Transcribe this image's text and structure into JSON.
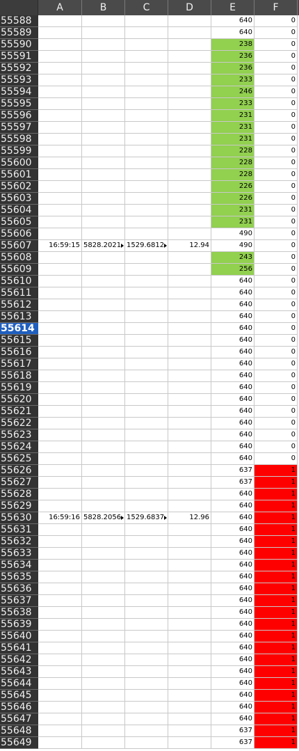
{
  "columns": [
    "A",
    "B",
    "C",
    "D",
    "E",
    "F"
  ],
  "selected_row": "55614",
  "colors": {
    "highlight_green": "#92d050",
    "highlight_red": "#ff0000",
    "selected_header": "#1f5fbf"
  },
  "rows": [
    {
      "n": "55588",
      "E": "640",
      "F": "0"
    },
    {
      "n": "55589",
      "E": "640",
      "F": "0"
    },
    {
      "n": "55590",
      "E": "238",
      "F": "0",
      "Ehl": "green"
    },
    {
      "n": "55591",
      "E": "236",
      "F": "0",
      "Ehl": "green"
    },
    {
      "n": "55592",
      "E": "236",
      "F": "0",
      "Ehl": "green"
    },
    {
      "n": "55593",
      "E": "233",
      "F": "0",
      "Ehl": "green"
    },
    {
      "n": "55594",
      "E": "246",
      "F": "0",
      "Ehl": "green"
    },
    {
      "n": "55595",
      "E": "233",
      "F": "0",
      "Ehl": "green"
    },
    {
      "n": "55596",
      "E": "231",
      "F": "0",
      "Ehl": "green"
    },
    {
      "n": "55597",
      "E": "231",
      "F": "0",
      "Ehl": "green"
    },
    {
      "n": "55598",
      "E": "231",
      "F": "0",
      "Ehl": "green"
    },
    {
      "n": "55599",
      "E": "228",
      "F": "0",
      "Ehl": "green"
    },
    {
      "n": "55600",
      "E": "228",
      "F": "0",
      "Ehl": "green"
    },
    {
      "n": "55601",
      "E": "228",
      "F": "0",
      "Ehl": "green"
    },
    {
      "n": "55602",
      "E": "226",
      "F": "0",
      "Ehl": "green"
    },
    {
      "n": "55603",
      "E": "226",
      "F": "0",
      "Ehl": "green"
    },
    {
      "n": "55604",
      "E": "231",
      "F": "0",
      "Ehl": "green"
    },
    {
      "n": "55605",
      "E": "231",
      "F": "0",
      "Ehl": "green"
    },
    {
      "n": "55606",
      "E": "490",
      "F": "0"
    },
    {
      "n": "55607",
      "A": "16:59:15",
      "B": "5828.2021",
      "C": "1529.6812",
      "D": "12.94",
      "E": "490",
      "F": "0"
    },
    {
      "n": "55608",
      "E": "243",
      "F": "0",
      "Ehl": "green"
    },
    {
      "n": "55609",
      "E": "256",
      "F": "0",
      "Ehl": "green"
    },
    {
      "n": "55610",
      "E": "640",
      "F": "0"
    },
    {
      "n": "55611",
      "E": "640",
      "F": "0"
    },
    {
      "n": "55612",
      "E": "640",
      "F": "0"
    },
    {
      "n": "55613",
      "E": "640",
      "F": "0"
    },
    {
      "n": "55614",
      "E": "640",
      "F": "0"
    },
    {
      "n": "55615",
      "E": "640",
      "F": "0"
    },
    {
      "n": "55616",
      "E": "640",
      "F": "0"
    },
    {
      "n": "55617",
      "E": "640",
      "F": "0"
    },
    {
      "n": "55618",
      "E": "640",
      "F": "0"
    },
    {
      "n": "55619",
      "E": "640",
      "F": "0"
    },
    {
      "n": "55620",
      "E": "640",
      "F": "0"
    },
    {
      "n": "55621",
      "E": "640",
      "F": "0"
    },
    {
      "n": "55622",
      "E": "640",
      "F": "0"
    },
    {
      "n": "55623",
      "E": "640",
      "F": "0"
    },
    {
      "n": "55624",
      "E": "640",
      "F": "0"
    },
    {
      "n": "55625",
      "E": "640",
      "F": "0"
    },
    {
      "n": "55626",
      "E": "637",
      "F": "1",
      "Fhl": "red"
    },
    {
      "n": "55627",
      "E": "637",
      "F": "1",
      "Fhl": "red"
    },
    {
      "n": "55628",
      "E": "640",
      "F": "1",
      "Fhl": "red"
    },
    {
      "n": "55629",
      "E": "640",
      "F": "1",
      "Fhl": "red"
    },
    {
      "n": "55630",
      "A": "16:59:16",
      "B": "5828.2056",
      "C": "1529.6837",
      "D": "12.96",
      "E": "640",
      "F": "1",
      "Fhl": "red"
    },
    {
      "n": "55631",
      "E": "640",
      "F": "1",
      "Fhl": "red"
    },
    {
      "n": "55632",
      "E": "640",
      "F": "1",
      "Fhl": "red"
    },
    {
      "n": "55633",
      "E": "640",
      "F": "1",
      "Fhl": "red"
    },
    {
      "n": "55634",
      "E": "640",
      "F": "1",
      "Fhl": "red"
    },
    {
      "n": "55635",
      "E": "640",
      "F": "1",
      "Fhl": "red"
    },
    {
      "n": "55636",
      "E": "640",
      "F": "1",
      "Fhl": "red"
    },
    {
      "n": "55637",
      "E": "640",
      "F": "1",
      "Fhl": "red"
    },
    {
      "n": "55638",
      "E": "640",
      "F": "1",
      "Fhl": "red"
    },
    {
      "n": "55639",
      "E": "640",
      "F": "1",
      "Fhl": "red"
    },
    {
      "n": "55640",
      "E": "640",
      "F": "1",
      "Fhl": "red"
    },
    {
      "n": "55641",
      "E": "640",
      "F": "1",
      "Fhl": "red"
    },
    {
      "n": "55642",
      "E": "640",
      "F": "1",
      "Fhl": "red"
    },
    {
      "n": "55643",
      "E": "640",
      "F": "1",
      "Fhl": "red"
    },
    {
      "n": "55644",
      "E": "640",
      "F": "1",
      "Fhl": "red"
    },
    {
      "n": "55645",
      "E": "640",
      "F": "1",
      "Fhl": "red"
    },
    {
      "n": "55646",
      "E": "640",
      "F": "1",
      "Fhl": "red"
    },
    {
      "n": "55647",
      "E": "640",
      "F": "1",
      "Fhl": "red"
    },
    {
      "n": "55648",
      "E": "637",
      "F": "1",
      "Fhl": "red"
    },
    {
      "n": "55649",
      "E": "637",
      "F": "1",
      "Fhl": "red"
    }
  ]
}
